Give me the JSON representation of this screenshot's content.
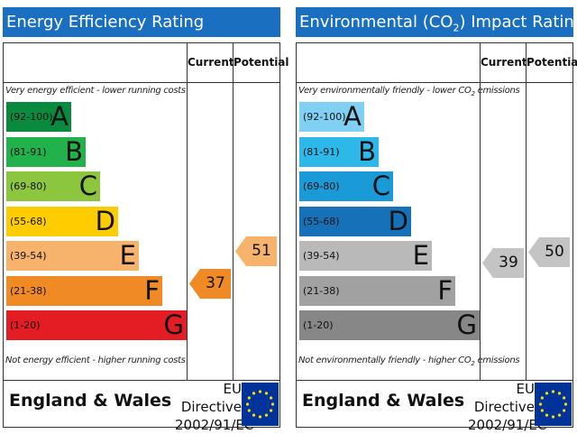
{
  "chart_data": [
    {
      "type": "bar",
      "title": "Energy Efficiency Rating",
      "columns": [
        "Current",
        "Potential"
      ],
      "top_note": "Very energy efficient - lower running costs",
      "bottom_note": "Not energy efficient - higher running costs",
      "bands": [
        {
          "range": "(92-100)",
          "letter": "A",
          "color": "#0a8a3e"
        },
        {
          "range": "(81-91)",
          "letter": "B",
          "color": "#22b24b"
        },
        {
          "range": "(69-80)",
          "letter": "C",
          "color": "#8cc63f"
        },
        {
          "range": "(55-68)",
          "letter": "D",
          "color": "#ffcc00"
        },
        {
          "range": "(39-54)",
          "letter": "E",
          "color": "#f7b36b"
        },
        {
          "range": "(21-38)",
          "letter": "F",
          "color": "#f08a24"
        },
        {
          "range": "(1-20)",
          "letter": "G",
          "color": "#e31d23"
        }
      ],
      "current": {
        "value": "37",
        "band": "F",
        "color": "#f08a24"
      },
      "potential": {
        "value": "51",
        "band": "E",
        "color": "#f7b36b"
      },
      "region": "England & Wales",
      "directive": [
        "EU Directive",
        "2002/91/EC"
      ]
    },
    {
      "type": "bar",
      "title": "Environmental (CO2) Impact Rating",
      "title_parts": [
        "Environmental (CO",
        "2",
        ") Impact Rating"
      ],
      "columns": [
        "Current",
        "Potential"
      ],
      "top_note": "Very environmentally friendly - lower CO2 emissions",
      "top_note_parts": [
        "Very environmentally friendly - lower CO",
        "2",
        " emissions"
      ],
      "bottom_note": "Not environmentally friendly - higher CO2 emissions",
      "bottom_note_parts": [
        "Not environmentally friendly - higher CO",
        "2",
        " emissions"
      ],
      "bands": [
        {
          "range": "(92-100)",
          "letter": "A",
          "color": "#7fd0f3"
        },
        {
          "range": "(81-91)",
          "letter": "B",
          "color": "#2db8ea"
        },
        {
          "range": "(69-80)",
          "letter": "C",
          "color": "#1a9bd7"
        },
        {
          "range": "(55-68)",
          "letter": "D",
          "color": "#1671b8"
        },
        {
          "range": "(39-54)",
          "letter": "E",
          "color": "#b9b9b9"
        },
        {
          "range": "(21-38)",
          "letter": "F",
          "color": "#a1a1a1"
        },
        {
          "range": "(1-20)",
          "letter": "G",
          "color": "#878787"
        }
      ],
      "current": {
        "value": "39",
        "band": "E",
        "color": "#c4c4c4"
      },
      "potential": {
        "value": "50",
        "band": "E",
        "color": "#c4c4c4"
      },
      "region": "England & Wales",
      "directive": [
        "EU Directive",
        "2002/91/EC"
      ]
    }
  ]
}
